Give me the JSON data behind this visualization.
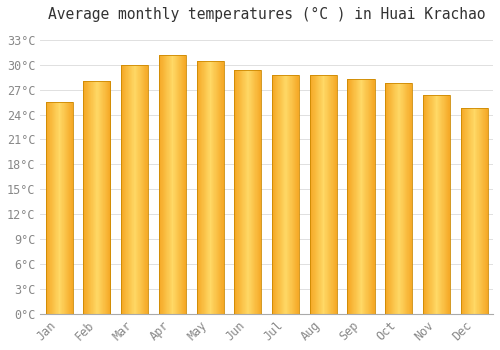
{
  "title": "Average monthly temperatures (°C ) in Huai Krachao",
  "months": [
    "Jan",
    "Feb",
    "Mar",
    "Apr",
    "May",
    "Jun",
    "Jul",
    "Aug",
    "Sep",
    "Oct",
    "Nov",
    "Dec"
  ],
  "values": [
    25.5,
    28.0,
    30.0,
    31.2,
    30.5,
    29.3,
    28.8,
    28.8,
    28.3,
    27.8,
    26.3,
    24.8
  ],
  "bar_color_left": "#F5A623",
  "bar_color_center": "#FFD966",
  "bar_color_right": "#F5A623",
  "bar_border_color": "#CC8800",
  "background_color": "#FFFFFF",
  "grid_color": "#E0E0E0",
  "yticks": [
    0,
    3,
    6,
    9,
    12,
    15,
    18,
    21,
    24,
    27,
    30,
    33
  ],
  "ylim": [
    0,
    34.5
  ],
  "title_fontsize": 10.5,
  "tick_fontsize": 8.5,
  "tick_color": "#888888",
  "font_family": "monospace",
  "bar_width": 0.72
}
